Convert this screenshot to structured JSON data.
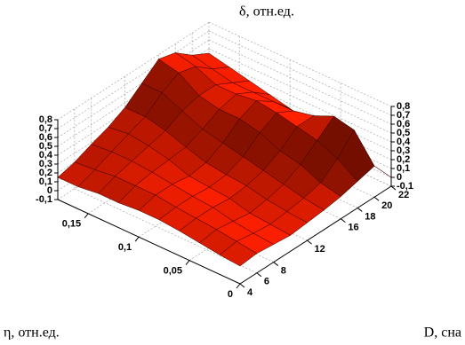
{
  "chart_data": {
    "type": "surface",
    "title": "δ, отн.ед.",
    "xlabel": "η, отн.ед.",
    "ylabel": "D, сна",
    "x": [
      0,
      0.02,
      0.04,
      0.06,
      0.08,
      0.1,
      0.12,
      0.14,
      0.16,
      0.18
    ],
    "y": [
      4,
      6,
      8,
      10,
      12,
      14,
      16,
      18,
      20,
      22
    ],
    "z": [
      [
        0.1,
        0.12,
        0.1,
        0.08,
        0.1,
        0.12,
        0.15,
        0.2,
        0.25,
        0.0
      ],
      [
        0.12,
        0.15,
        0.12,
        0.1,
        0.12,
        0.15,
        0.2,
        0.35,
        0.55,
        0.05
      ],
      [
        0.15,
        0.18,
        0.15,
        0.12,
        0.15,
        0.2,
        0.3,
        0.45,
        0.6,
        0.1
      ],
      [
        0.18,
        0.2,
        0.2,
        0.18,
        0.2,
        0.25,
        0.35,
        0.5,
        0.5,
        0.15
      ],
      [
        0.2,
        0.22,
        0.22,
        0.2,
        0.22,
        0.3,
        0.45,
        0.55,
        0.45,
        0.2
      ],
      [
        0.2,
        0.25,
        0.25,
        0.22,
        0.25,
        0.35,
        0.5,
        0.58,
        0.45,
        0.25
      ],
      [
        0.18,
        0.25,
        0.28,
        0.3,
        0.32,
        0.4,
        0.5,
        0.55,
        0.45,
        0.3
      ],
      [
        0.18,
        0.25,
        0.3,
        0.35,
        0.4,
        0.5,
        0.55,
        0.55,
        0.45,
        0.35
      ],
      [
        0.15,
        0.22,
        0.3,
        0.38,
        0.45,
        0.6,
        0.7,
        0.65,
        0.5,
        0.4
      ],
      [
        0.15,
        0.2,
        0.28,
        0.35,
        0.45,
        0.6,
        0.75,
        0.7,
        0.55,
        0.45
      ]
    ],
    "color": "#ff2000",
    "xlim": [
      0,
      0.18
    ],
    "ylim": [
      4,
      22
    ],
    "zlim": [
      -0.1,
      0.8
    ],
    "xticks": [
      0,
      {
        "value": 0.05,
        "label": "0,05"
      },
      {
        "value": 0.1,
        "label": "0,1"
      },
      {
        "value": 0.15,
        "label": "0,15"
      }
    ],
    "yticks": [
      4,
      6,
      8,
      12,
      16,
      18,
      20,
      22
    ],
    "zticks": [
      {
        "value": -0.1,
        "label": "-0,1"
      },
      0,
      {
        "value": 0.1,
        "label": "0,1"
      },
      {
        "value": 0.2,
        "label": "0,2"
      },
      {
        "value": 0.3,
        "label": "0,3"
      },
      {
        "value": 0.4,
        "label": "0,4"
      },
      {
        "value": 0.5,
        "label": "0,5"
      },
      {
        "value": 0.6,
        "label": "0,6"
      },
      {
        "value": 0.7,
        "label": "0,7"
      },
      {
        "value": 0.8,
        "label": "0,8"
      }
    ],
    "grid": true
  }
}
